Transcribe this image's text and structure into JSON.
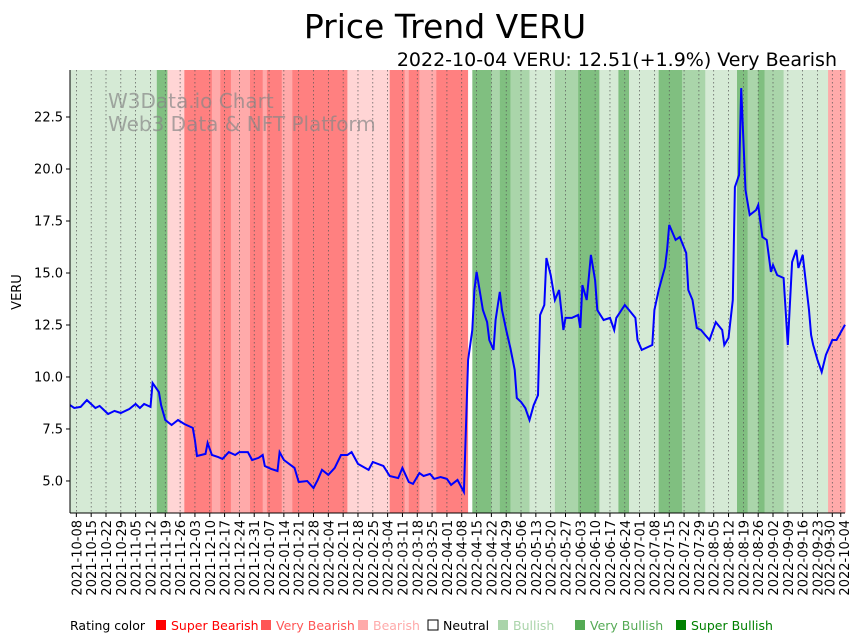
{
  "chart_data": {
    "type": "line",
    "title": "Price Trend VERU",
    "subtitle": "2022-10-04 VERU: 12.51(+1.9%) Very Bearish",
    "ylabel": "VERU",
    "xlabel": "",
    "x_unit": "days since 2021-10-05",
    "xlim": [
      0,
      366
    ],
    "ylim": [
      3.46,
      24.76
    ],
    "yticks": [
      "5.0",
      "7.5",
      "10.0",
      "12.5",
      "15.0",
      "17.5",
      "20.0",
      "22.5"
    ],
    "xtick_days_start": 3,
    "xtick_step_days": 7,
    "xticks": [
      "2021-10-08",
      "2021-10-15",
      "2021-10-22",
      "2021-10-29",
      "2021-11-05",
      "2021-11-12",
      "2021-11-19",
      "2021-11-26",
      "2021-12-03",
      "2021-12-10",
      "2021-12-17",
      "2021-12-24",
      "2021-12-31",
      "2022-01-07",
      "2022-01-14",
      "2022-01-21",
      "2022-01-28",
      "2022-02-04",
      "2022-02-11",
      "2022-02-18",
      "2022-02-25",
      "2022-03-04",
      "2022-03-11",
      "2022-03-18",
      "2022-03-25",
      "2022-04-01",
      "2022-04-08",
      "2022-04-15",
      "2022-04-22",
      "2022-04-29",
      "2022-05-06",
      "2022-05-13",
      "2022-05-20",
      "2022-05-27",
      "2022-06-03",
      "2022-06-10",
      "2022-06-17",
      "2022-06-24",
      "2022-07-01",
      "2022-07-08",
      "2022-07-15",
      "2022-07-22",
      "2022-07-29",
      "2022-08-05",
      "2022-08-12",
      "2022-08-19",
      "2022-08-26",
      "2022-09-02",
      "2022-09-09",
      "2022-09-16",
      "2022-09-23",
      "2022-09-30",
      "2022-10-04"
    ],
    "last_xtick_day": 364,
    "watermark": [
      "W3Data.io Chart",
      "Web3 Data & NFT Platform"
    ],
    "line_color": "#0000ff",
    "series": [
      {
        "name": "VERU",
        "points": [
          [
            0,
            8.65
          ],
          [
            2,
            8.51
          ],
          [
            5,
            8.56
          ],
          [
            8,
            8.89
          ],
          [
            12,
            8.51
          ],
          [
            14,
            8.61
          ],
          [
            18,
            8.22
          ],
          [
            21,
            8.37
          ],
          [
            24,
            8.27
          ],
          [
            28,
            8.46
          ],
          [
            31,
            8.7
          ],
          [
            33,
            8.51
          ],
          [
            35,
            8.7
          ],
          [
            38,
            8.56
          ],
          [
            39,
            9.71
          ],
          [
            42,
            9.28
          ],
          [
            43,
            8.65
          ],
          [
            45,
            7.93
          ],
          [
            48,
            7.69
          ],
          [
            51,
            7.93
          ],
          [
            54,
            7.74
          ],
          [
            58,
            7.55
          ],
          [
            59,
            6.97
          ],
          [
            60,
            6.2
          ],
          [
            64,
            6.3
          ],
          [
            65,
            6.83
          ],
          [
            67,
            6.25
          ],
          [
            70,
            6.15
          ],
          [
            72,
            6.06
          ],
          [
            75,
            6.39
          ],
          [
            78,
            6.25
          ],
          [
            80,
            6.39
          ],
          [
            84,
            6.39
          ],
          [
            86,
            6.01
          ],
          [
            89,
            6.11
          ],
          [
            91,
            6.25
          ],
          [
            92,
            5.72
          ],
          [
            95,
            5.58
          ],
          [
            98,
            5.48
          ],
          [
            99,
            6.39
          ],
          [
            101,
            6.01
          ],
          [
            106,
            5.63
          ],
          [
            108,
            4.95
          ],
          [
            112,
            5.0
          ],
          [
            115,
            4.66
          ],
          [
            117,
            5.05
          ],
          [
            119,
            5.53
          ],
          [
            122,
            5.29
          ],
          [
            125,
            5.63
          ],
          [
            128,
            6.25
          ],
          [
            131,
            6.25
          ],
          [
            133,
            6.39
          ],
          [
            136,
            5.82
          ],
          [
            141,
            5.53
          ],
          [
            143,
            5.91
          ],
          [
            148,
            5.72
          ],
          [
            151,
            5.24
          ],
          [
            155,
            5.14
          ],
          [
            157,
            5.63
          ],
          [
            160,
            4.95
          ],
          [
            162,
            4.86
          ],
          [
            165,
            5.38
          ],
          [
            167,
            5.24
          ],
          [
            170,
            5.34
          ],
          [
            172,
            5.1
          ],
          [
            175,
            5.19
          ],
          [
            178,
            5.1
          ],
          [
            180,
            4.81
          ],
          [
            183,
            5.05
          ],
          [
            186,
            4.47
          ],
          [
            188,
            10.82
          ],
          [
            190,
            12.26
          ],
          [
            191,
            14.18
          ],
          [
            192,
            15.05
          ],
          [
            195,
            13.22
          ],
          [
            197,
            12.64
          ],
          [
            198,
            11.78
          ],
          [
            200,
            11.3
          ],
          [
            201,
            12.74
          ],
          [
            203,
            14.09
          ],
          [
            204,
            13.22
          ],
          [
            206,
            12.26
          ],
          [
            208,
            11.39
          ],
          [
            210,
            10.34
          ],
          [
            211,
            8.99
          ],
          [
            213,
            8.8
          ],
          [
            215,
            8.51
          ],
          [
            217,
            7.93
          ],
          [
            219,
            8.65
          ],
          [
            221,
            9.13
          ],
          [
            222,
            12.98
          ],
          [
            224,
            13.46
          ],
          [
            225,
            15.72
          ],
          [
            227,
            14.9
          ],
          [
            229,
            13.7
          ],
          [
            231,
            14.18
          ],
          [
            233,
            12.26
          ],
          [
            234,
            12.84
          ],
          [
            237,
            12.84
          ],
          [
            240,
            12.98
          ],
          [
            241,
            12.36
          ],
          [
            242,
            14.42
          ],
          [
            244,
            13.7
          ],
          [
            246,
            15.87
          ],
          [
            248,
            14.66
          ],
          [
            249,
            13.22
          ],
          [
            252,
            12.74
          ],
          [
            255,
            12.84
          ],
          [
            257,
            12.26
          ],
          [
            258,
            12.84
          ],
          [
            262,
            13.46
          ],
          [
            264,
            13.22
          ],
          [
            267,
            12.84
          ],
          [
            268,
            11.78
          ],
          [
            270,
            11.3
          ],
          [
            275,
            11.54
          ],
          [
            276,
            13.22
          ],
          [
            278,
            14.18
          ],
          [
            281,
            15.29
          ],
          [
            282,
            16.11
          ],
          [
            283,
            17.31
          ],
          [
            286,
            16.59
          ],
          [
            288,
            16.73
          ],
          [
            291,
            15.96
          ],
          [
            292,
            14.18
          ],
          [
            294,
            13.7
          ],
          [
            296,
            12.36
          ],
          [
            298,
            12.26
          ],
          [
            300,
            12.02
          ],
          [
            302,
            11.78
          ],
          [
            305,
            12.64
          ],
          [
            308,
            12.26
          ],
          [
            309,
            11.54
          ],
          [
            311,
            11.88
          ],
          [
            313,
            13.7
          ],
          [
            314,
            19.13
          ],
          [
            316,
            19.71
          ],
          [
            317,
            23.89
          ],
          [
            319,
            18.99
          ],
          [
            321,
            17.79
          ],
          [
            324,
            18.03
          ],
          [
            325,
            18.27
          ],
          [
            327,
            16.73
          ],
          [
            329,
            16.59
          ],
          [
            331,
            15.05
          ],
          [
            332,
            15.38
          ],
          [
            334,
            14.9
          ],
          [
            337,
            14.76
          ],
          [
            339,
            11.54
          ],
          [
            341,
            15.53
          ],
          [
            343,
            16.11
          ],
          [
            344,
            15.24
          ],
          [
            346,
            15.87
          ],
          [
            349,
            13.22
          ],
          [
            350,
            12.02
          ],
          [
            351,
            11.54
          ],
          [
            353,
            10.82
          ],
          [
            355,
            10.24
          ],
          [
            357,
            11.06
          ],
          [
            360,
            11.78
          ],
          [
            362,
            11.78
          ],
          [
            366,
            12.51
          ]
        ]
      }
    ],
    "rating_bands": [
      [
        0,
        41,
        "Bullish"
      ],
      [
        41,
        46,
        "Super Bullish"
      ],
      [
        46,
        54,
        "Bearish"
      ],
      [
        54,
        67,
        "Super Bearish"
      ],
      [
        67,
        71,
        "Very Bearish"
      ],
      [
        71,
        76,
        "Super Bearish"
      ],
      [
        76,
        85,
        "Very Bearish"
      ],
      [
        85,
        91,
        "Super Bearish"
      ],
      [
        91,
        93,
        "Very Bearish"
      ],
      [
        93,
        100,
        "Super Bearish"
      ],
      [
        100,
        105,
        "Very Bearish"
      ],
      [
        105,
        131,
        "Super Bearish"
      ],
      [
        131,
        151,
        "Bearish"
      ],
      [
        151,
        158,
        "Super Bearish"
      ],
      [
        158,
        160,
        "Very Bearish"
      ],
      [
        160,
        165,
        "Super Bearish"
      ],
      [
        165,
        173,
        "Very Bearish"
      ],
      [
        173,
        188,
        "Super Bearish"
      ],
      [
        188,
        190,
        "Neutral"
      ],
      [
        190,
        199,
        "Super Bullish"
      ],
      [
        199,
        203,
        "Very Bullish"
      ],
      [
        203,
        208,
        "Super Bullish"
      ],
      [
        208,
        217,
        "Very Bullish"
      ],
      [
        217,
        229,
        "Bullish"
      ],
      [
        229,
        240,
        "Very Bullish"
      ],
      [
        240,
        250,
        "Super Bullish"
      ],
      [
        250,
        259,
        "Bullish"
      ],
      [
        259,
        264,
        "Super Bullish"
      ],
      [
        264,
        278,
        "Bullish"
      ],
      [
        278,
        289,
        "Super Bullish"
      ],
      [
        289,
        300,
        "Very Bullish"
      ],
      [
        300,
        315,
        "Bullish"
      ],
      [
        315,
        320,
        "Super Bullish"
      ],
      [
        320,
        325,
        "Very Bullish"
      ],
      [
        325,
        328,
        "Super Bullish"
      ],
      [
        328,
        337,
        "Very Bullish"
      ],
      [
        337,
        358,
        "Bullish"
      ],
      [
        358,
        366,
        "Very Bearish"
      ]
    ],
    "legend": {
      "title": "Rating color",
      "placement": "bottom",
      "items": [
        {
          "label": "Super Bearish",
          "color": "#ff0000"
        },
        {
          "label": "Very Bearish",
          "color": "#ff5555"
        },
        {
          "label": "Bearish",
          "color": "#ffaaaa"
        },
        {
          "label": "Neutral",
          "color": "#ffffff"
        },
        {
          "label": "Bullish",
          "color": "#aad4aa"
        },
        {
          "label": "Very Bullish",
          "color": "#55aa55"
        },
        {
          "label": "Super Bullish",
          "color": "#008000"
        }
      ]
    }
  }
}
